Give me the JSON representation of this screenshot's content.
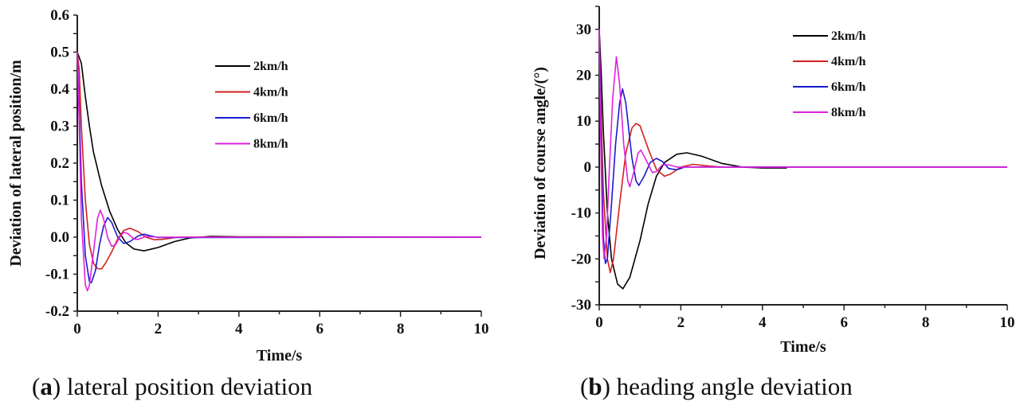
{
  "chart_data": [
    {
      "type": "line",
      "panel": "a",
      "caption_letter": "a",
      "caption_text": "lateral position deviation",
      "xlabel": "Time/s",
      "ylabel": "Deviation of lateral position/m",
      "xlim": [
        0,
        10
      ],
      "ylim": [
        -0.2,
        0.6
      ],
      "xticks": [
        "0",
        "2",
        "4",
        "6",
        "8",
        "10"
      ],
      "yticks": [
        "-0.2",
        "-0.1",
        "0.0",
        "0.1",
        "0.2",
        "0.3",
        "0.4",
        "0.5",
        "0.6"
      ],
      "legend_position": "top-center",
      "series": [
        {
          "name": "2km/h",
          "color": "#000000",
          "points": [
            [
              0,
              0.5
            ],
            [
              0.1,
              0.47
            ],
            [
              0.2,
              0.38
            ],
            [
              0.3,
              0.3
            ],
            [
              0.4,
              0.23
            ],
            [
              0.6,
              0.14
            ],
            [
              0.8,
              0.07
            ],
            [
              1.0,
              0.02
            ],
            [
              1.2,
              -0.015
            ],
            [
              1.4,
              -0.032
            ],
            [
              1.65,
              -0.037
            ],
            [
              2.0,
              -0.028
            ],
            [
              2.4,
              -0.012
            ],
            [
              2.8,
              -0.002
            ],
            [
              3.3,
              0.002
            ],
            [
              4,
              0.001
            ],
            [
              10,
              0
            ]
          ]
        },
        {
          "name": "4km/h",
          "color": "#d42020",
          "points": [
            [
              0,
              0.5
            ],
            [
              0.05,
              0.45
            ],
            [
              0.1,
              0.3
            ],
            [
              0.2,
              0.1
            ],
            [
              0.3,
              -0.02
            ],
            [
              0.4,
              -0.07
            ],
            [
              0.5,
              -0.085
            ],
            [
              0.6,
              -0.086
            ],
            [
              0.7,
              -0.07
            ],
            [
              0.85,
              -0.04
            ],
            [
              1.0,
              -0.005
            ],
            [
              1.15,
              0.018
            ],
            [
              1.3,
              0.024
            ],
            [
              1.5,
              0.015
            ],
            [
              1.7,
              0.0
            ],
            [
              1.9,
              -0.007
            ],
            [
              2.1,
              -0.006
            ],
            [
              2.5,
              0.0
            ],
            [
              10,
              0
            ]
          ]
        },
        {
          "name": "6km/h",
          "color": "#1a1ad0",
          "points": [
            [
              0,
              0.5
            ],
            [
              0.05,
              0.35
            ],
            [
              0.1,
              0.15
            ],
            [
              0.2,
              -0.05
            ],
            [
              0.3,
              -0.12
            ],
            [
              0.35,
              -0.123
            ],
            [
              0.45,
              -0.09
            ],
            [
              0.55,
              -0.02
            ],
            [
              0.65,
              0.03
            ],
            [
              0.75,
              0.053
            ],
            [
              0.85,
              0.04
            ],
            [
              1.0,
              0.0
            ],
            [
              1.15,
              -0.017
            ],
            [
              1.3,
              -0.012
            ],
            [
              1.5,
              0.003
            ],
            [
              1.65,
              0.008
            ],
            [
              1.8,
              0.004
            ],
            [
              2.0,
              -0.001
            ],
            [
              10,
              0
            ]
          ]
        },
        {
          "name": "8km/h",
          "color": "#e020e0",
          "points": [
            [
              0,
              0.5
            ],
            [
              0.05,
              0.3
            ],
            [
              0.1,
              0.05
            ],
            [
              0.2,
              -0.13
            ],
            [
              0.25,
              -0.145
            ],
            [
              0.3,
              -0.13
            ],
            [
              0.4,
              -0.04
            ],
            [
              0.5,
              0.05
            ],
            [
              0.57,
              0.073
            ],
            [
              0.65,
              0.05
            ],
            [
              0.75,
              0.0
            ],
            [
              0.85,
              -0.025
            ],
            [
              0.95,
              -0.02
            ],
            [
              1.05,
              0.0
            ],
            [
              1.15,
              0.013
            ],
            [
              1.25,
              0.01
            ],
            [
              1.4,
              -0.005
            ],
            [
              1.5,
              -0.006
            ],
            [
              1.7,
              0.002
            ],
            [
              2,
              0
            ],
            [
              10,
              0
            ]
          ]
        }
      ]
    },
    {
      "type": "line",
      "panel": "b",
      "caption_letter": "b",
      "caption_text": "heading angle deviation",
      "xlabel": "Time/s",
      "ylabel": "Deviation of course angle/(°)",
      "xlim": [
        0,
        10
      ],
      "ylim": [
        -30,
        35
      ],
      "xticks": [
        "0",
        "2",
        "4",
        "6",
        "8",
        "10"
      ],
      "yticks": [
        "-30",
        "-20",
        "-10",
        "0",
        "10",
        "20",
        "30"
      ],
      "legend_position": "top-right",
      "series": [
        {
          "name": "2km/h",
          "color": "#000000",
          "points": [
            [
              0,
              30
            ],
            [
              0.05,
              20
            ],
            [
              0.1,
              8
            ],
            [
              0.2,
              -10
            ],
            [
              0.3,
              -20
            ],
            [
              0.45,
              -25.5
            ],
            [
              0.58,
              -26.5
            ],
            [
              0.75,
              -24
            ],
            [
              1.0,
              -16
            ],
            [
              1.2,
              -8
            ],
            [
              1.4,
              -2
            ],
            [
              1.6,
              1
            ],
            [
              1.9,
              2.8
            ],
            [
              2.15,
              3.1
            ],
            [
              2.5,
              2.4
            ],
            [
              3,
              0.8
            ],
            [
              3.5,
              0
            ],
            [
              4,
              -0.2
            ],
            [
              4.6,
              -0.2
            ]
          ]
        },
        {
          "name": "4km/h",
          "color": "#d42020",
          "points": [
            [
              0,
              30
            ],
            [
              0.05,
              10
            ],
            [
              0.1,
              -5
            ],
            [
              0.2,
              -20
            ],
            [
              0.27,
              -23
            ],
            [
              0.35,
              -20
            ],
            [
              0.5,
              -8
            ],
            [
              0.65,
              3
            ],
            [
              0.8,
              8.5
            ],
            [
              0.9,
              9.5
            ],
            [
              1.0,
              9
            ],
            [
              1.2,
              4
            ],
            [
              1.4,
              -0.5
            ],
            [
              1.6,
              -2
            ],
            [
              1.75,
              -1.5
            ],
            [
              2.0,
              0
            ],
            [
              2.3,
              0.6
            ],
            [
              2.6,
              0.3
            ],
            [
              3,
              0
            ],
            [
              10,
              0
            ]
          ]
        },
        {
          "name": "6km/h",
          "color": "#1a1ad0",
          "points": [
            [
              0,
              30
            ],
            [
              0.05,
              5
            ],
            [
              0.1,
              -15
            ],
            [
              0.15,
              -21
            ],
            [
              0.2,
              -20
            ],
            [
              0.3,
              -8
            ],
            [
              0.4,
              5
            ],
            [
              0.5,
              14
            ],
            [
              0.57,
              17
            ],
            [
              0.65,
              14
            ],
            [
              0.8,
              2
            ],
            [
              0.9,
              -3
            ],
            [
              0.97,
              -4
            ],
            [
              1.1,
              -2
            ],
            [
              1.25,
              1
            ],
            [
              1.4,
              1.9
            ],
            [
              1.55,
              1.2
            ],
            [
              1.7,
              -0.3
            ],
            [
              1.9,
              -0.6
            ],
            [
              2.1,
              0
            ],
            [
              10,
              0
            ]
          ]
        },
        {
          "name": "8km/h",
          "color": "#e020e0",
          "points": [
            [
              0,
              30
            ],
            [
              0.03,
              10
            ],
            [
              0.08,
              -15
            ],
            [
              0.12,
              -20
            ],
            [
              0.18,
              -15
            ],
            [
              0.25,
              0
            ],
            [
              0.33,
              15
            ],
            [
              0.42,
              24
            ],
            [
              0.5,
              18
            ],
            [
              0.6,
              5
            ],
            [
              0.7,
              -3
            ],
            [
              0.75,
              -4.3
            ],
            [
              0.85,
              -1
            ],
            [
              0.95,
              3
            ],
            [
              1.02,
              3.7
            ],
            [
              1.15,
              1.5
            ],
            [
              1.3,
              -1.2
            ],
            [
              1.4,
              -1
            ],
            [
              1.55,
              0.5
            ],
            [
              1.7,
              0.5
            ],
            [
              1.9,
              0
            ],
            [
              10,
              0
            ]
          ]
        }
      ]
    }
  ]
}
